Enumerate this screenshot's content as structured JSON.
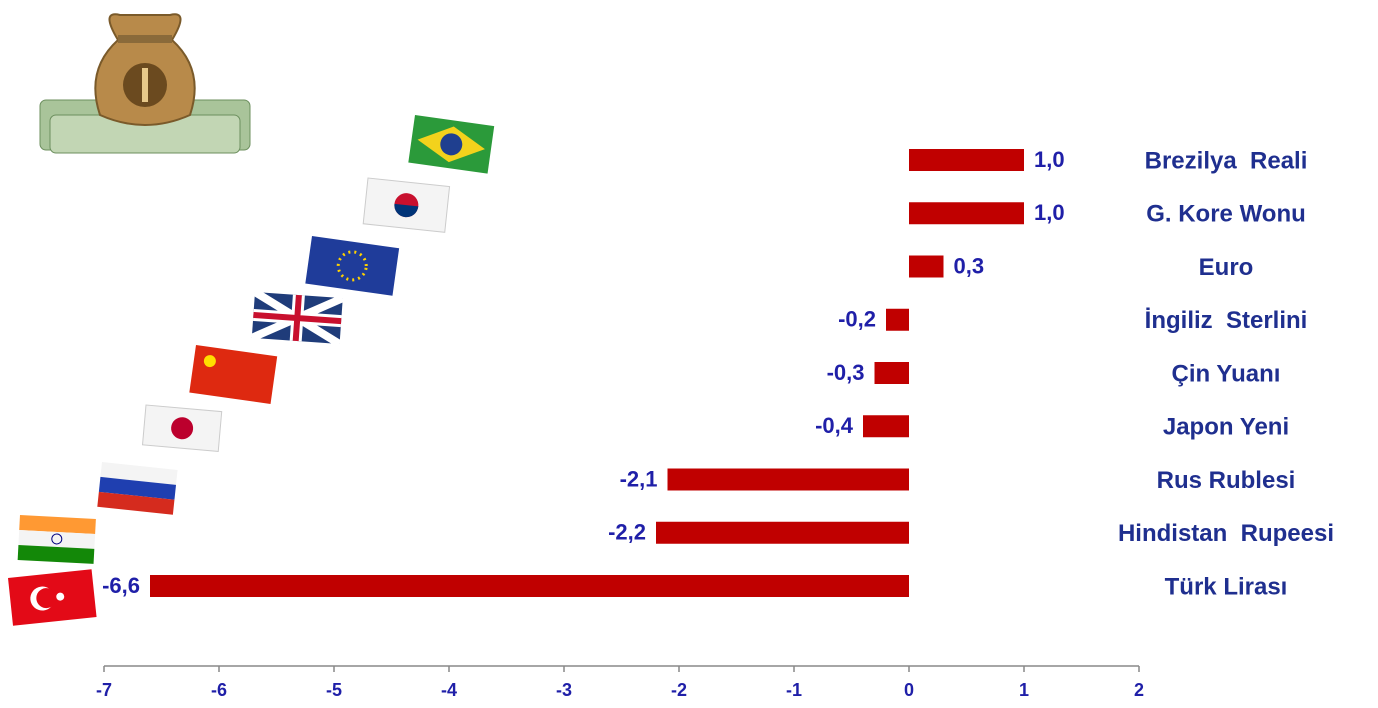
{
  "chart_data": {
    "type": "hbar",
    "categories": [
      "Brezilya  Reali",
      "G. Kore Wonu",
      "Euro",
      "İngiliz  Sterlini",
      "Çin Yuanı",
      "Japon Yeni",
      "Rus Rublesi",
      "Hindistan  Rupeesi",
      "Türk Lirası"
    ],
    "values": [
      1.0,
      1.0,
      0.3,
      -0.2,
      -0.3,
      -0.4,
      -2.1,
      -2.2,
      -6.6
    ],
    "value_labels": [
      "1,0",
      "1,0",
      "0,3",
      "-0,2",
      "-0,3",
      "-0,4",
      "-2,1",
      "-2,2",
      "-6,6"
    ],
    "color": "#c00000",
    "xlim": [
      -7,
      2
    ],
    "xticks": [
      -7,
      -6,
      -5,
      -4,
      -3,
      -2,
      -1,
      0,
      1,
      2
    ],
    "grid": false
  }
}
